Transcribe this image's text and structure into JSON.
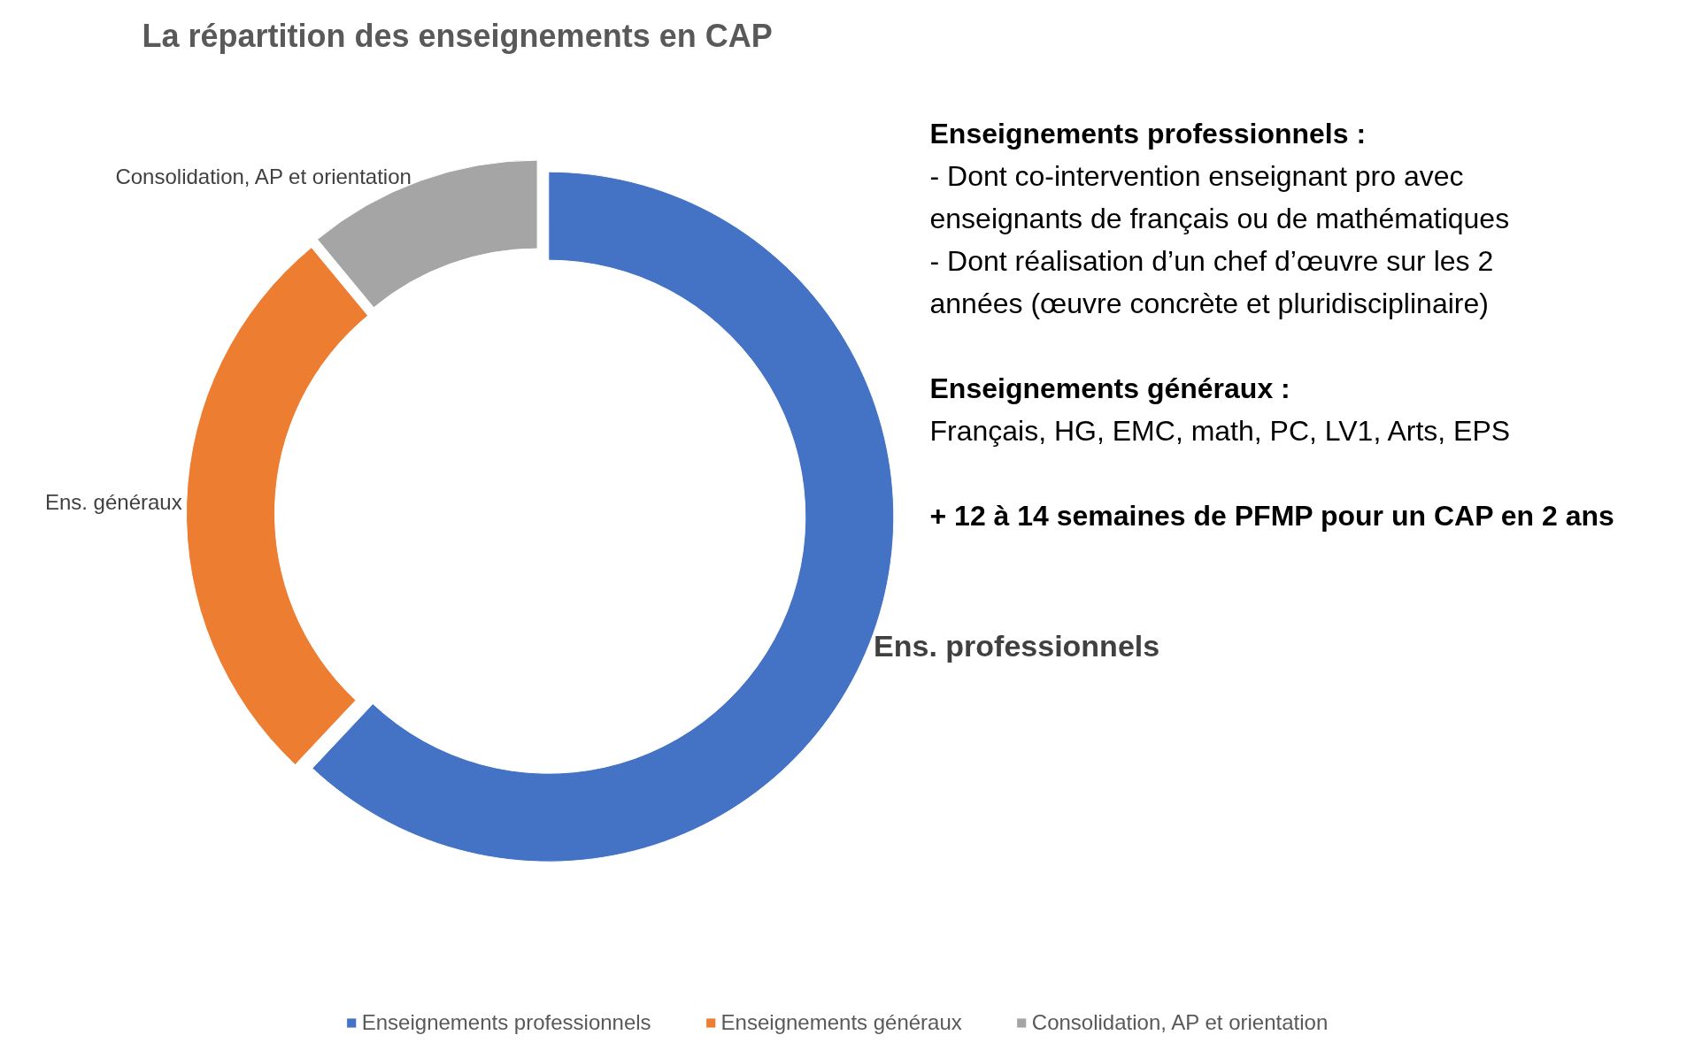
{
  "chart_data": {
    "type": "donut",
    "title": "La répartition des enseignements en CAP",
    "categories": [
      "Enseignements professionnels",
      "Enseignements généraux",
      "Consolidation, AP et orientation"
    ],
    "values": [
      62,
      27,
      11
    ],
    "colors": [
      "#4472c4",
      "#ed7d31",
      "#a5a5a5"
    ],
    "value_labels": [
      "Ens. professionnels",
      "Ens. généraux",
      "Consolidation, AP  et orientation"
    ],
    "legend": "bottom",
    "annotations": [
      "Enseignements professionnels :",
      "- Dont co-intervention enseignant pro avec enseignants de français ou de mathématiques",
      "- Dont réalisation d’un chef d’œuvre sur les 2 années (œuvre concrète et pluridisciplinaire)",
      "Enseignements généraux :",
      "Français, HG, EMC, math, PC, LV1, Arts, EPS",
      "+ 12 à 14 semaines de PFMP pour un CAP en 2 ans"
    ]
  }
}
